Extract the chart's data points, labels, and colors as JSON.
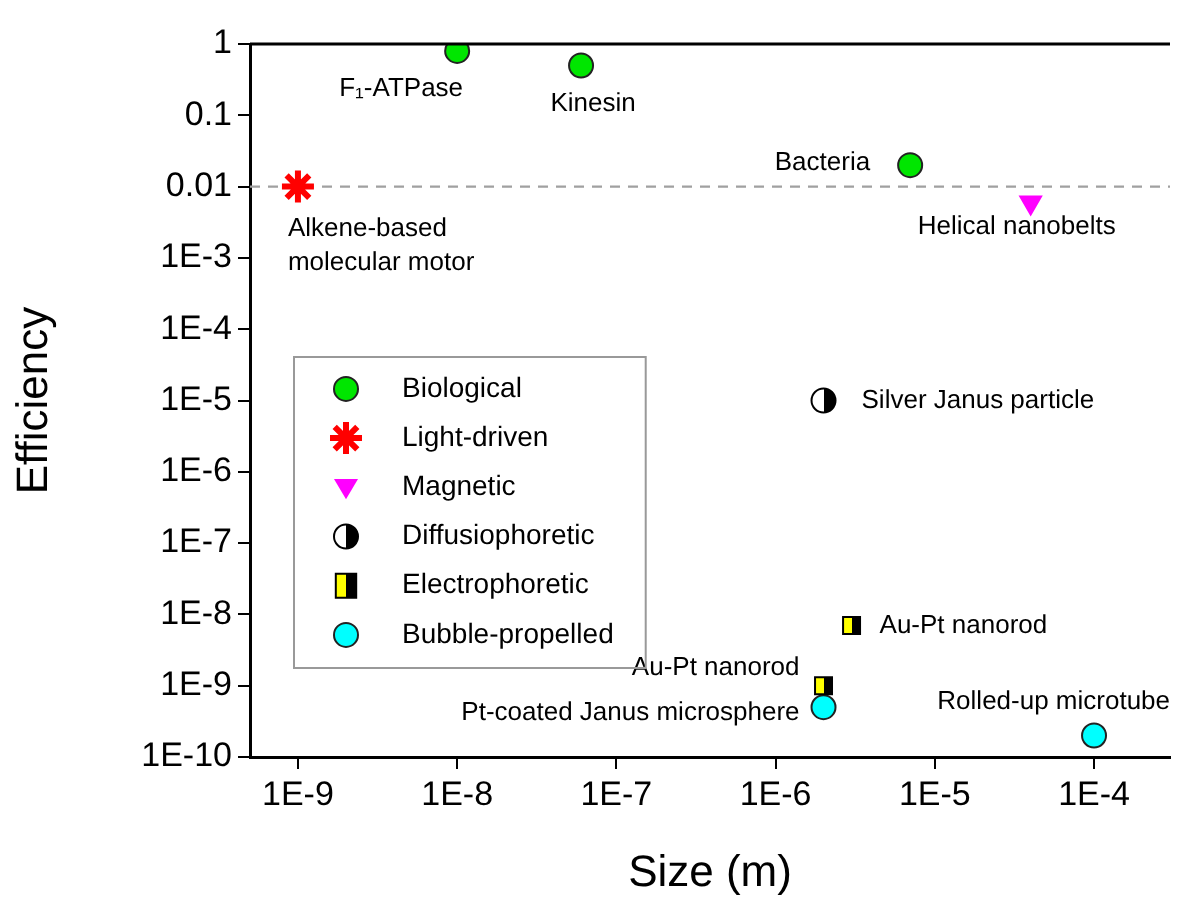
{
  "chart_data": {
    "type": "scatter",
    "xlabel": "Size (m)",
    "ylabel": "Efficiency",
    "log": "xy",
    "grid": false,
    "legend": "left",
    "xlim": [
      5e-10,
      0.0003
    ],
    "ylim": [
      1e-10,
      1
    ],
    "xticks": [
      {
        "value": 1e-09,
        "label": "1E-9"
      },
      {
        "value": 1e-08,
        "label": "1E-8"
      },
      {
        "value": 1e-07,
        "label": "1E-7"
      },
      {
        "value": 1e-06,
        "label": "1E-6"
      },
      {
        "value": 1e-05,
        "label": "1E-5"
      },
      {
        "value": 0.0001,
        "label": "1E-4"
      }
    ],
    "yticks": [
      {
        "value": 1e-10,
        "label": "1E-10"
      },
      {
        "value": 1e-09,
        "label": "1E-9"
      },
      {
        "value": 1e-08,
        "label": "1E-8"
      },
      {
        "value": 1e-07,
        "label": "1E-7"
      },
      {
        "value": 1e-06,
        "label": "1E-6"
      },
      {
        "value": 1e-05,
        "label": "1E-5"
      },
      {
        "value": 0.0001,
        "label": "1E-4"
      },
      {
        "value": 0.001,
        "label": "1E-3"
      },
      0.01,
      0.1,
      1
    ],
    "series": [
      {
        "name": "Biological",
        "color": "#00e600",
        "marker": "circle",
        "x": [
          1e-08,
          6e-08,
          7e-06
        ],
        "values": [
          0.8,
          0.5,
          0.02
        ]
      },
      {
        "name": "Light-driven",
        "color": "#ff0000",
        "marker": "cross",
        "x": [
          1e-09
        ],
        "values": [
          0.01
        ]
      },
      {
        "name": "Magnetic",
        "color": "#ff00ff",
        "marker": "triangle",
        "x": [
          4e-05
        ],
        "values": [
          0.006
        ]
      },
      {
        "name": "Diffusiophoretic",
        "color": "#000000",
        "marker": "circle",
        "x": [
          2e-06
        ],
        "values": [
          1e-05
        ]
      },
      {
        "name": "Electrophoretic",
        "color": "#000000",
        "marker": "square",
        "x": [
          3e-06,
          2e-06
        ],
        "values": [
          7e-09,
          1e-09
        ]
      },
      {
        "name": "Bubble-propelled",
        "color": "#00ffff",
        "marker": "circle",
        "x": [
          2e-06,
          0.0001
        ],
        "values": [
          5e-10,
          2e-10
        ]
      }
    ],
    "ref_lines": [
      {
        "axis": "y",
        "value": 0.01,
        "color": "#a0a0a0",
        "line_style": "dashed"
      }
    ],
    "annotations": [
      {
        "text": "F₁-ATPase",
        "x": 1e-08,
        "y": 0.8
      },
      {
        "text": "Kinesin",
        "x": 6e-08,
        "y": 0.5
      },
      {
        "text": "Bacteria",
        "x": 7e-06,
        "y": 0.02
      },
      {
        "text": "Alkene-based\nmolecular motor",
        "x": 1e-09,
        "y": 0.01
      },
      {
        "text": "Helical nanobelts",
        "x": 4e-05,
        "y": 0.006
      },
      {
        "text": "Silver Janus particle",
        "x": 2e-06,
        "y": 1e-05
      },
      {
        "text": "Au-Pt nanorod",
        "x": 3e-06,
        "y": 7e-09
      },
      {
        "text": "Au-Pt nanorod",
        "x": 2e-06,
        "y": 1e-09
      },
      {
        "text": "Pt-coated Janus microsphere",
        "x": 2e-06,
        "y": 5e-10
      },
      {
        "text": "Rolled-up microtube",
        "x": 0.0001,
        "y": 2e-10
      }
    ]
  }
}
